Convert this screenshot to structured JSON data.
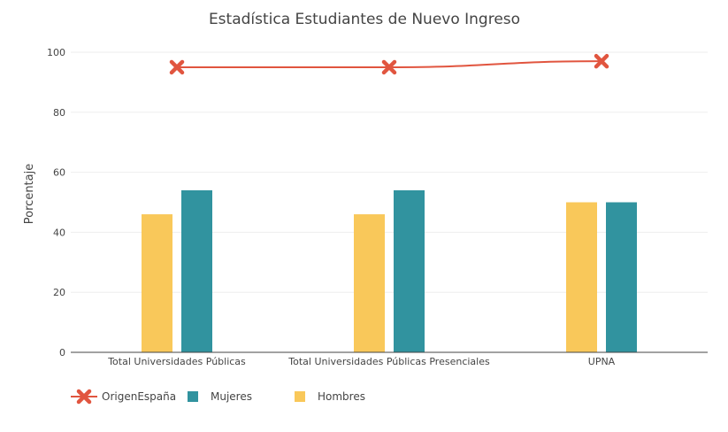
{
  "chart_data": {
    "type": "bar",
    "title": "Estadística Estudiantes de Nuevo Ingreso",
    "xlabel": "",
    "ylabel": "Porcentaje",
    "ylim": [
      0,
      100
    ],
    "yticks": [
      0,
      20,
      40,
      60,
      80,
      100
    ],
    "grid": true,
    "legend_position": "bottom-left",
    "categories": [
      "Total Universidades Públicas",
      "Total Universidades Públicas Presenciales",
      "UPNA"
    ],
    "series": [
      {
        "name": "Hombres",
        "type": "bar",
        "color": "#f9c85a",
        "values": [
          46,
          46,
          50
        ]
      },
      {
        "name": "Mujeres",
        "type": "bar",
        "color": "#31939f",
        "values": [
          54,
          54,
          50
        ]
      },
      {
        "name": "OrigenEspaña",
        "type": "line",
        "marker": "x",
        "color": "#e1553f",
        "values": [
          95,
          95,
          97
        ]
      }
    ],
    "legend_order": [
      "OrigenEspaña",
      "Mujeres",
      "Hombres"
    ]
  }
}
